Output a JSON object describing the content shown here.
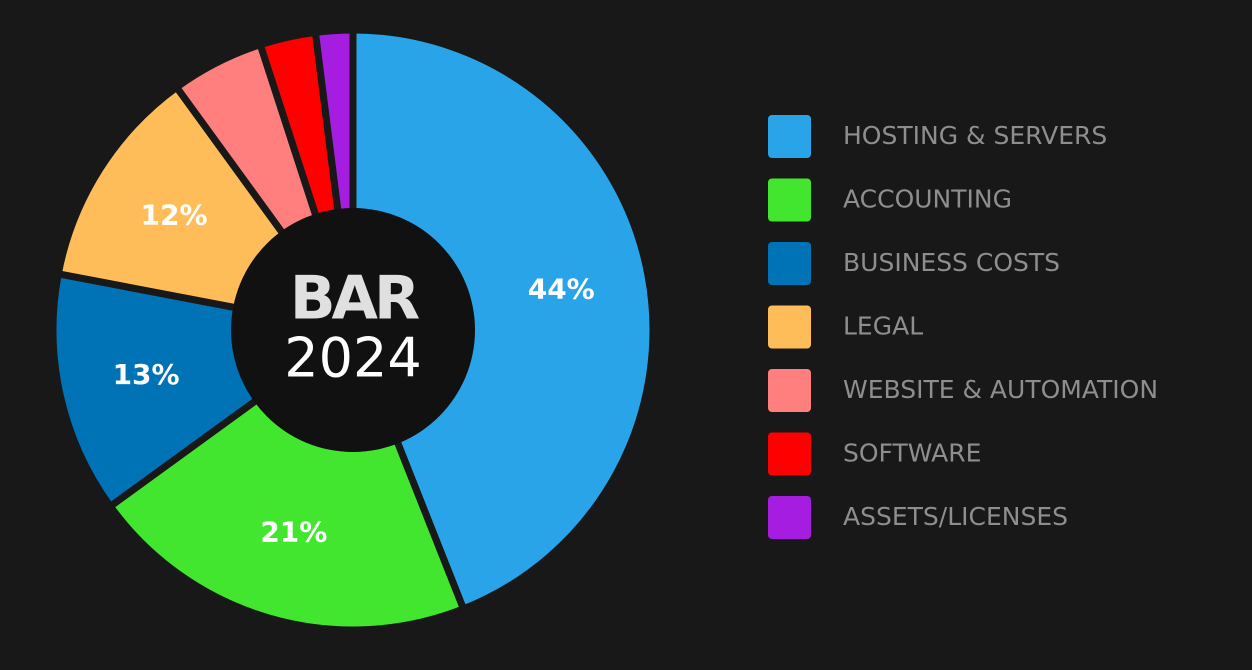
{
  "chart_data": {
    "type": "donut",
    "center_title": "BAR",
    "center_subtitle": "2024",
    "categories": [
      "HOSTING & SERVERS",
      "ACCOUNTING",
      "BUSINESS COSTS",
      "LEGAL",
      "WEBSITE & AUTOMATION",
      "SOFTWARE",
      "ASSETS/LICENSES"
    ],
    "values": [
      44,
      21,
      13,
      12,
      5,
      3,
      2
    ],
    "value_labels": [
      "44%",
      "21%",
      "13%",
      "12%",
      null,
      null,
      null
    ],
    "colors": [
      "#2aa4e8",
      "#43e62f",
      "#0073b6",
      "#ffbd59",
      "#ff7f7f",
      "#ff0000",
      "#a51de0"
    ],
    "legend": "right"
  }
}
